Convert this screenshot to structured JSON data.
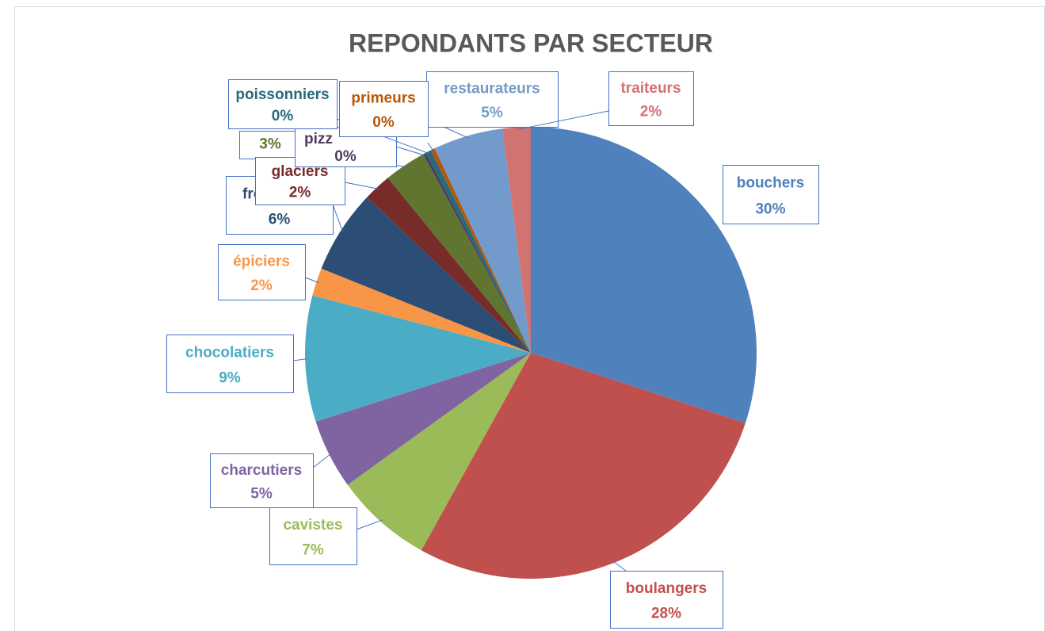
{
  "chart_data": {
    "type": "pie",
    "title": "REPONDANTS PAR SECTEUR",
    "categories": [
      "bouchers",
      "boulangers",
      "cavistes",
      "charcutiers",
      "chocolatiers",
      "épiciers",
      "fromagers",
      "glaciers",
      null,
      "pizz",
      "poissonniers",
      "primeurs",
      "restaurateurs",
      "traiteurs"
    ],
    "values": [
      30,
      28,
      7,
      5,
      9,
      2,
      6,
      2,
      3,
      0.2,
      0.4,
      0.3,
      5,
      2
    ],
    "value_labels": [
      "30%",
      "28%",
      "7%",
      "5%",
      "9%",
      "2%",
      "6%",
      "2%",
      "3%",
      "0%",
      "0%",
      "0%",
      "5%",
      "2%"
    ],
    "colors": [
      "#4f81bd",
      "#c0504d",
      "#9bbb59",
      "#8064a2",
      "#4bacc6",
      "#f79646",
      "#2c4d75",
      "#772c2a",
      "#5f7530",
      "#4d3b62",
      "#276a7c",
      "#b65708",
      "#729aca",
      "#d07371"
    ]
  }
}
